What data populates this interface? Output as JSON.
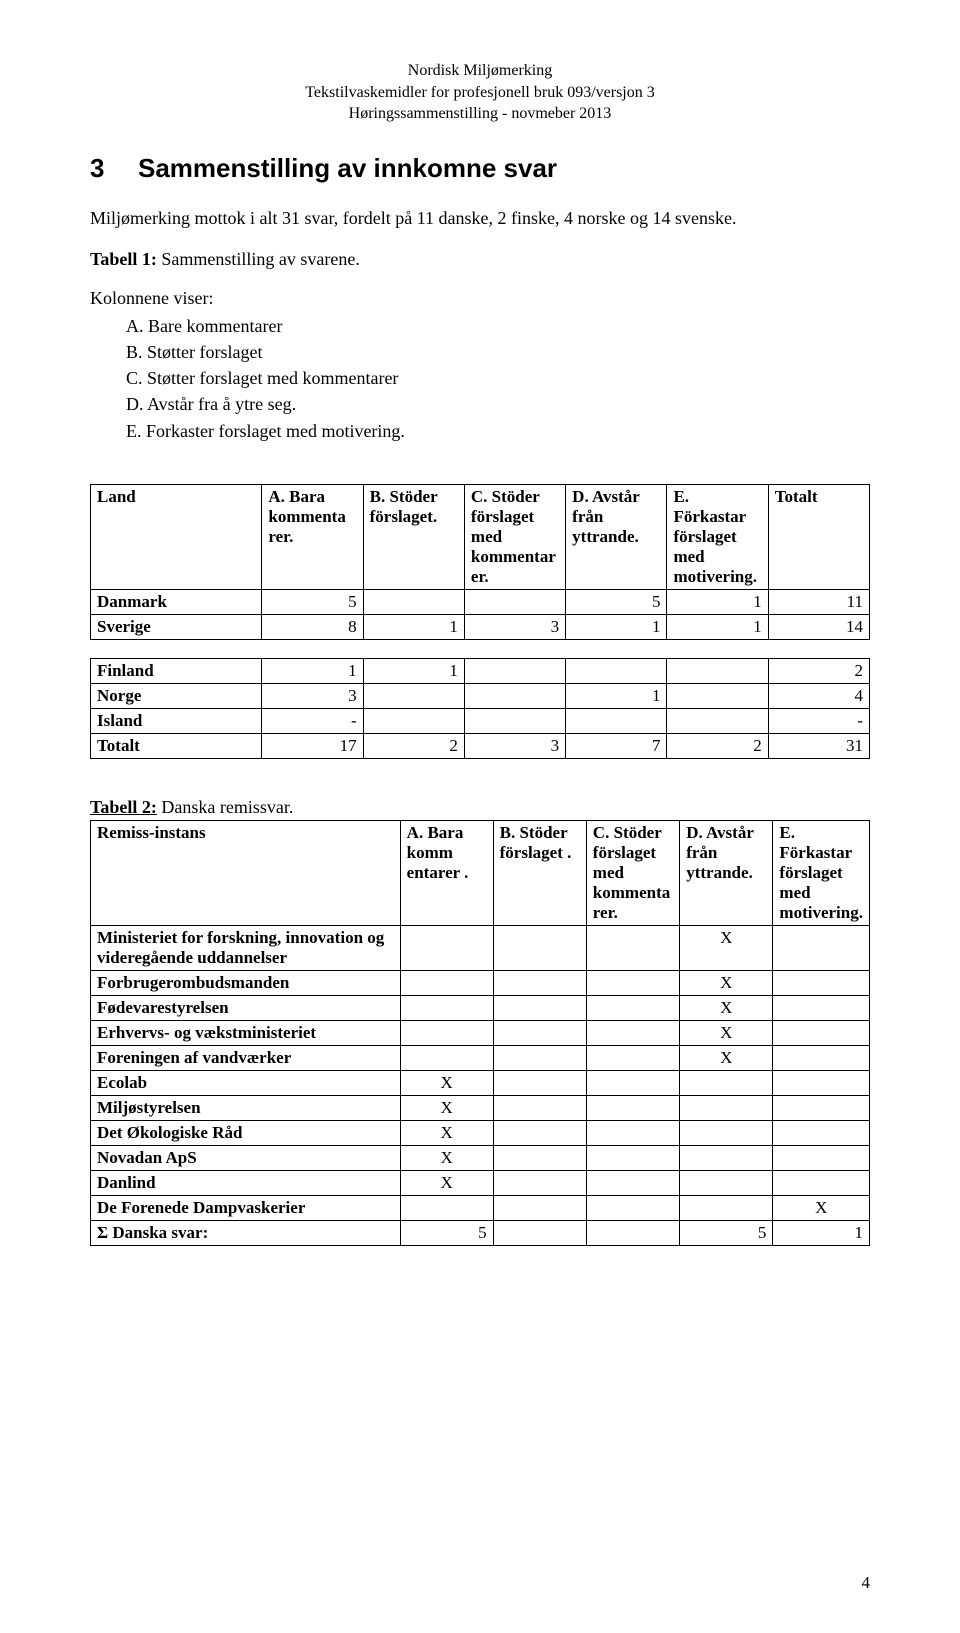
{
  "header": {
    "line1": "Nordisk Miljømerking",
    "line2": "Tekstilvaskemidler for profesjonell bruk 093/versjon 3",
    "line3": "Høringssammenstilling - novmeber 2013"
  },
  "section": {
    "number": "3",
    "title": "Sammenstilling av innkomne svar"
  },
  "intro": "Miljømerking mottok i alt 31 svar, fordelt på 11 danske, 2 finske, 4 norske og 14 svenske.",
  "tabell1_label": "Tabell 1:",
  "tabell1_text": " Sammenstilling av svarene.",
  "kolonnene": "Kolonnene viser:",
  "options": {
    "a": "A. Bare kommentarer",
    "b": "B. Støtter forslaget",
    "c": "C. Støtter forslaget med kommentarer",
    "d": "D. Avstår fra å ytre seg.",
    "e": "E. Forkaster forslaget med motivering."
  },
  "table1": {
    "headers": [
      "Land",
      "A. Bara kommenta rer.",
      "B. Stöder förslaget.",
      "C. Stöder förslaget med kommentar er.",
      "D. Avstår från yttrande.",
      "E. Förkastar förslaget med motivering.",
      "Totalt"
    ],
    "rows_top": [
      {
        "land": "Danmark",
        "a": "5",
        "b": "",
        "c": "",
        "d": "5",
        "e": "1",
        "t": "11"
      },
      {
        "land": "Sverige",
        "a": "8",
        "b": "1",
        "c": "3",
        "d": "1",
        "e": "1",
        "t": "14"
      }
    ],
    "rows_bottom": [
      {
        "land": "Finland",
        "a": "1",
        "b": "1",
        "c": "",
        "d": "",
        "e": "",
        "t": "2"
      },
      {
        "land": "Norge",
        "a": "3",
        "b": "",
        "c": "",
        "d": "1",
        "e": "",
        "t": "4"
      },
      {
        "land": "Island",
        "a": "-",
        "b": "",
        "c": "",
        "d": "",
        "e": "",
        "t": "-"
      },
      {
        "land": "Totalt",
        "a": "17",
        "b": "2",
        "c": "3",
        "d": "7",
        "e": "2",
        "t": "31"
      }
    ]
  },
  "tabell2_label": "Tabell 2:",
  "tabell2_text": " Danska remissvar.",
  "table2": {
    "headers": [
      "Remiss-instans",
      "A. Bara komm entarer .",
      "B. Stöder förslaget .",
      "C. Stöder förslaget med kommenta rer.",
      "D. Avstår från yttrande.",
      "E. Förkastar förslaget med motivering."
    ],
    "rows": [
      {
        "name": "Ministeriet for forskning, innovation og videregående uddannelser",
        "a": "",
        "b": "",
        "c": "",
        "d": "X",
        "e": ""
      },
      {
        "name": "Forbrugerombudsmanden",
        "a": "",
        "b": "",
        "c": "",
        "d": "X",
        "e": ""
      },
      {
        "name": "Fødevarestyrelsen",
        "a": "",
        "b": "",
        "c": "",
        "d": "X",
        "e": ""
      },
      {
        "name": "Erhvervs- og vækstministeriet",
        "a": "",
        "b": "",
        "c": "",
        "d": "X",
        "e": ""
      },
      {
        "name": "Foreningen af vandværker",
        "a": "",
        "b": "",
        "c": "",
        "d": "X",
        "e": ""
      },
      {
        "name": "Ecolab",
        "a": "X",
        "b": "",
        "c": "",
        "d": "",
        "e": ""
      },
      {
        "name": "Miljøstyrelsen",
        "a": "X",
        "b": "",
        "c": "",
        "d": "",
        "e": ""
      },
      {
        "name": "Det Økologiske Råd",
        "a": "X",
        "b": "",
        "c": "",
        "d": "",
        "e": ""
      },
      {
        "name": "Novadan ApS",
        "a": "X",
        "b": "",
        "c": "",
        "d": "",
        "e": ""
      },
      {
        "name": "Danlind",
        "a": "X",
        "b": "",
        "c": "",
        "d": "",
        "e": ""
      },
      {
        "name": "De Forenede Dampvaskerier",
        "a": "",
        "b": "",
        "c": "",
        "d": "",
        "e": "X"
      },
      {
        "name": "Σ Danska svar:",
        "a": "5",
        "b": "",
        "c": "",
        "d": "5",
        "e": "1"
      }
    ]
  },
  "pagenum": "4"
}
